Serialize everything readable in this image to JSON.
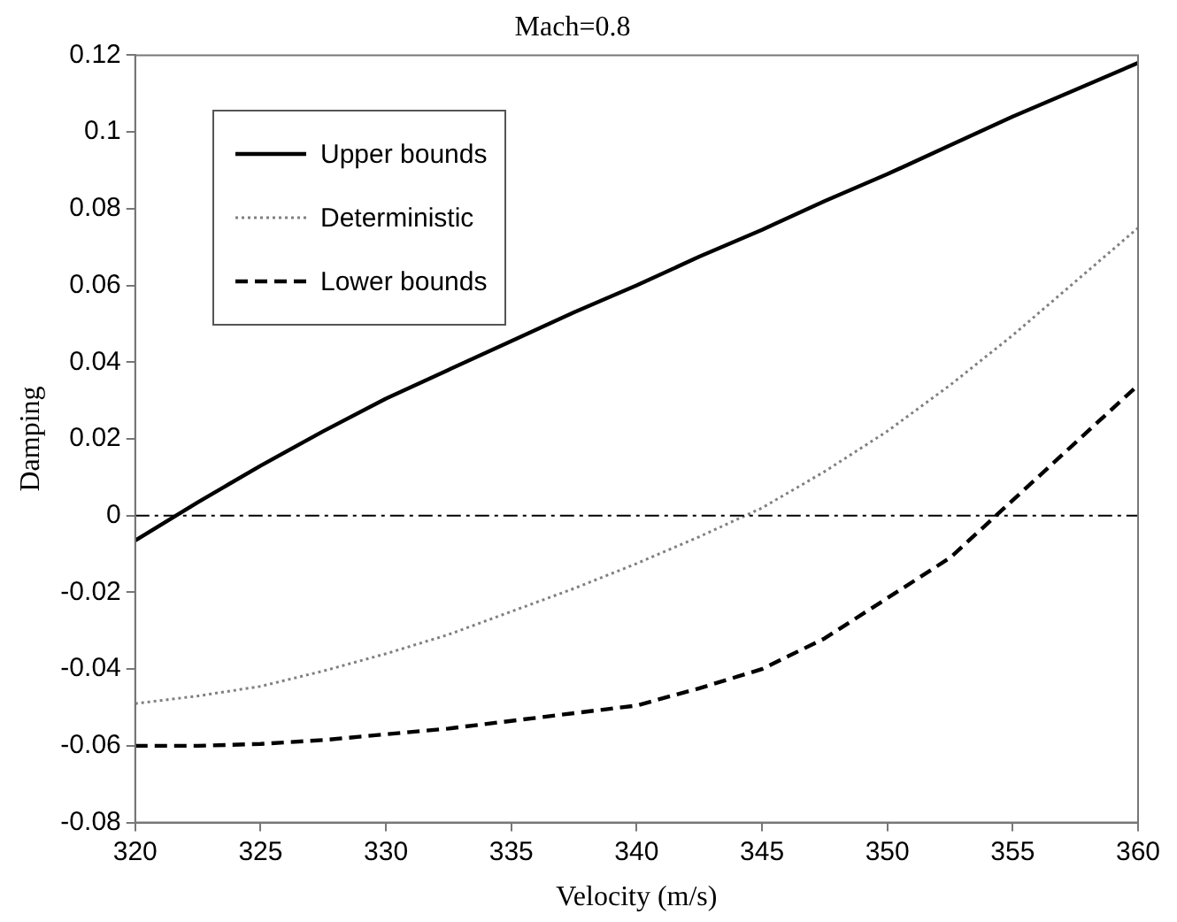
{
  "chart_data": {
    "type": "line",
    "title": "Mach=0.8",
    "xlabel": "Velocity (m/s)",
    "ylabel": "Damping",
    "x": [
      320,
      322.5,
      325,
      327.5,
      330,
      332.5,
      335,
      337.5,
      340,
      342.5,
      345,
      347.5,
      350,
      352.5,
      355,
      357.5,
      360
    ],
    "series": [
      {
        "name": "Upper bounds",
        "color": "#000000",
        "line_style": "solid",
        "values": [
          -0.0065,
          0.0035,
          0.013,
          0.022,
          0.0305,
          0.038,
          0.0455,
          0.053,
          0.06,
          0.0675,
          0.0745,
          0.082,
          0.089,
          0.0965,
          0.104,
          0.111,
          0.118
        ]
      },
      {
        "name": "Deterministic",
        "color": "#808080",
        "line_style": "dotted",
        "values": [
          -0.049,
          -0.047,
          -0.0445,
          -0.0405,
          -0.036,
          -0.031,
          -0.025,
          -0.019,
          -0.0125,
          -0.0055,
          0.002,
          0.0115,
          0.022,
          0.034,
          0.047,
          0.061,
          0.075
        ]
      },
      {
        "name": "Lower bounds",
        "color": "#000000",
        "line_style": "dashed",
        "values": [
          -0.06,
          -0.06,
          -0.0595,
          -0.0585,
          -0.057,
          -0.0555,
          -0.0535,
          -0.0515,
          -0.0495,
          -0.045,
          -0.04,
          -0.032,
          -0.0215,
          -0.011,
          0.004,
          0.019,
          0.034
        ]
      }
    ],
    "xlim": [
      320,
      360
    ],
    "xticks": [
      320,
      325,
      330,
      335,
      340,
      345,
      350,
      355,
      360
    ],
    "ylim": [
      -0.08,
      0.12
    ],
    "yticks": [
      {
        "value": -0.08,
        "label": "-0.08"
      },
      {
        "value": -0.06,
        "label": "-0.06"
      },
      {
        "value": -0.04,
        "label": "-0.04"
      },
      {
        "value": -0.02,
        "label": "-0.02"
      },
      0,
      {
        "value": 0.02,
        "label": "0.02"
      },
      {
        "value": 0.04,
        "label": "0.04"
      },
      {
        "value": 0.06,
        "label": "0.06"
      },
      {
        "value": 0.08,
        "label": "0.08"
      },
      {
        "value": 0.1,
        "label": "0.1"
      },
      {
        "value": 0.12,
        "label": "0.12"
      }
    ],
    "ref_lines": [
      {
        "axis": "y",
        "value": 0,
        "color": "#000000",
        "line_style": "dashdot"
      }
    ],
    "legend": "top left",
    "grid": false,
    "marker": "none"
  }
}
